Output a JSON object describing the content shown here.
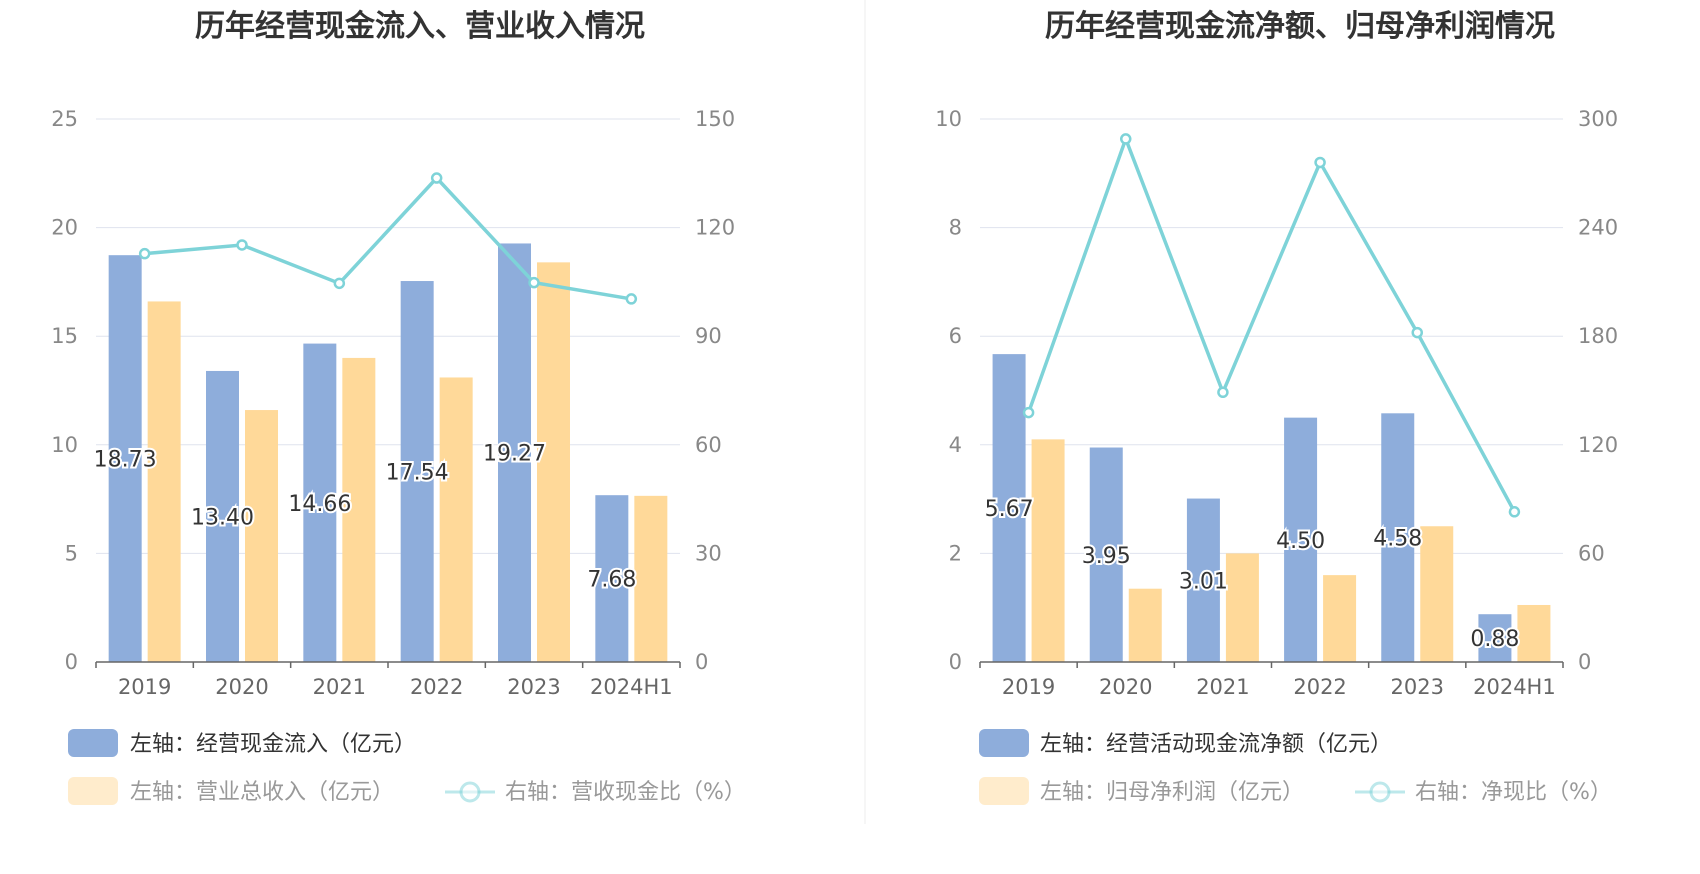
{
  "colors": {
    "bar_primary": "#8eaddb",
    "bar_secondary": "#ffd999",
    "line": "#7ed3d8",
    "grid": "#dfe3ee",
    "axis": "#666666",
    "divider": "#eeeeee"
  },
  "chart_data": [
    {
      "type": "bar",
      "title": "历年经营现金流入、营业收入情况",
      "categories": [
        "2019",
        "2020",
        "2021",
        "2022",
        "2023",
        "2024H1"
      ],
      "ylim_left": [
        0,
        25
      ],
      "yticks_left": [
        "0",
        "5",
        "10",
        "15",
        "20",
        "25"
      ],
      "ylim_right": [
        0,
        150
      ],
      "yticks_right": [
        "0",
        "30",
        "60",
        "90",
        "120",
        "150"
      ],
      "grid": true,
      "legend_position": "bottom",
      "series": [
        {
          "name": "左轴：经营现金流入（亿元）",
          "kind": "bar",
          "axis": "left",
          "color": "#8eaddb",
          "values": [
            18.73,
            13.4,
            14.66,
            17.54,
            19.27,
            7.68
          ],
          "labels": [
            "18.73",
            "13.40",
            "14.66",
            "17.54",
            "19.27",
            "7.68"
          ]
        },
        {
          "name": "左轴：营业总收入（亿元）",
          "kind": "bar",
          "axis": "left",
          "color": "#ffd999",
          "values": [
            16.6,
            11.6,
            14.0,
            13.1,
            18.4,
            7.65
          ]
        },
        {
          "name": "右轴：营收现金比（%）",
          "kind": "line",
          "axis": "right",
          "color": "#7ed3d8",
          "values": [
            112.8,
            115.2,
            104.6,
            133.7,
            104.8,
            100.3
          ]
        }
      ]
    },
    {
      "type": "bar",
      "title": "历年经营现金流净额、归母净利润情况",
      "categories": [
        "2019",
        "2020",
        "2021",
        "2022",
        "2023",
        "2024H1"
      ],
      "ylim_left": [
        0,
        10
      ],
      "yticks_left": [
        "0",
        "2",
        "4",
        "6",
        "8",
        "10"
      ],
      "ylim_right": [
        0,
        300
      ],
      "yticks_right": [
        "0",
        "60",
        "120",
        "180",
        "240",
        "300"
      ],
      "grid": true,
      "legend_position": "bottom",
      "series": [
        {
          "name": "左轴：经营活动现金流净额（亿元）",
          "kind": "bar",
          "axis": "left",
          "color": "#8eaddb",
          "values": [
            5.67,
            3.95,
            3.01,
            4.5,
            4.58,
            0.88
          ],
          "labels": [
            "5.67",
            "3.95",
            "3.01",
            "4.50",
            "4.58",
            "0.88"
          ]
        },
        {
          "name": "左轴：归母净利润（亿元）",
          "kind": "bar",
          "axis": "left",
          "color": "#ffd999",
          "values": [
            4.1,
            1.35,
            2.0,
            1.6,
            2.5,
            1.05
          ]
        },
        {
          "name": "右轴：净现比（%）",
          "kind": "line",
          "axis": "right",
          "color": "#7ed3d8",
          "values": [
            137.8,
            289.0,
            149.0,
            276.0,
            182.0,
            83.0
          ]
        }
      ]
    }
  ]
}
